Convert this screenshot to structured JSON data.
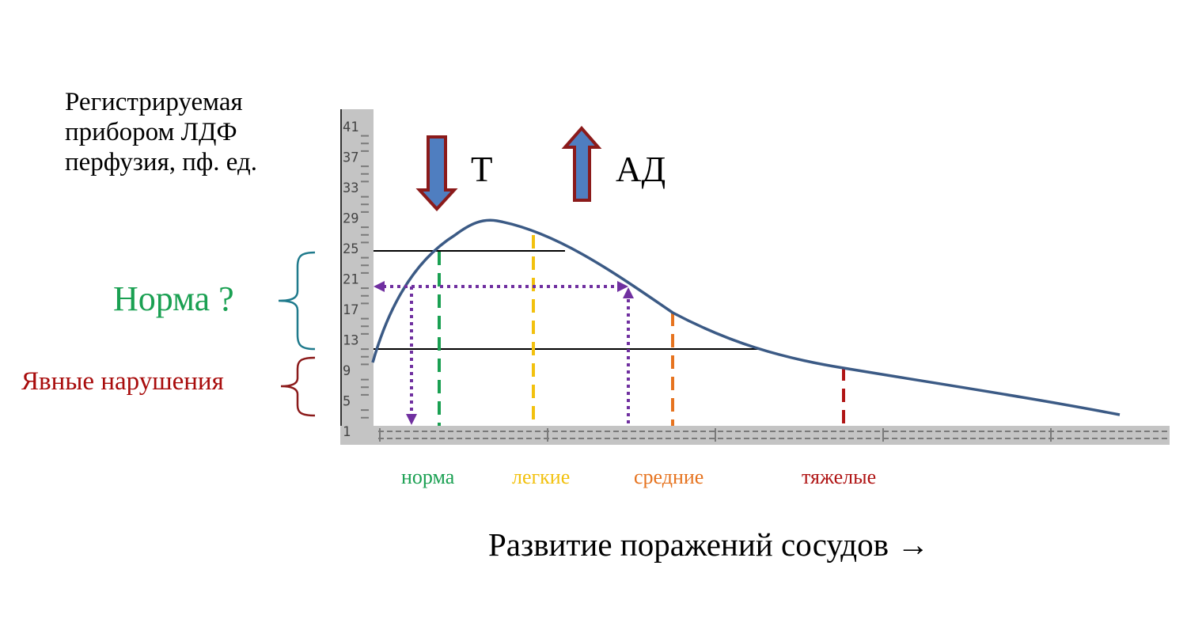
{
  "y_axis": {
    "title": "Регистрируемая\nприбором ЛДФ\nперфузия, пф. ед.",
    "ticks": [
      "41",
      "37",
      "33",
      "29",
      "25",
      "21",
      "17",
      "13",
      "9",
      "5",
      "1"
    ]
  },
  "x_axis": {
    "title": "Развитие поражений сосудов →",
    "categories": [
      "норма",
      "легкие",
      "средние",
      "тяжелые"
    ]
  },
  "ranges": {
    "normal": "Норма ?",
    "violations": "Явные нарушения"
  },
  "arrows": {
    "down": {
      "label": "Т",
      "direction": "down"
    },
    "up": {
      "label": "АД",
      "direction": "up"
    }
  },
  "colors": {
    "curve": "#3b5a85",
    "normal": "#1aa052",
    "light": "#f2c10e",
    "medium": "#e6731f",
    "severe": "#b01515",
    "probe": "#7030a0",
    "arrow_fill": "#4f7ec0",
    "arrow_border": "#8b1a1a",
    "axis_bg": "#c4c4c4"
  }
}
